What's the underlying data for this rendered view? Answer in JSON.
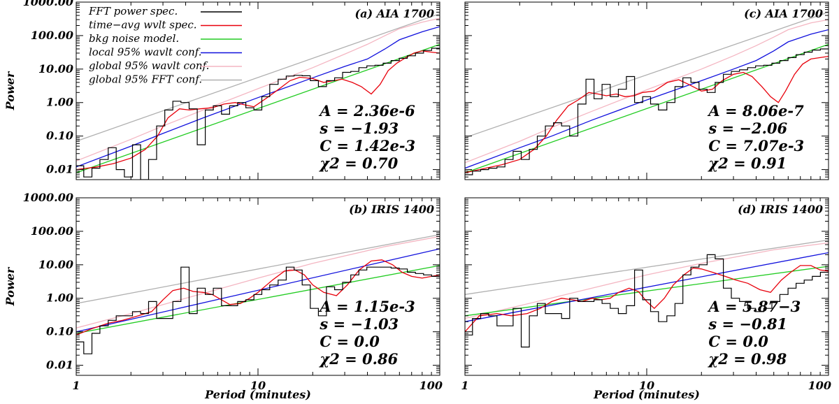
{
  "figure": {
    "xlabel": "Period (minutes)",
    "ylabel": "Power"
  },
  "chart_data": [
    {
      "type": "line",
      "id": "a",
      "title": "(a) AIA 1700",
      "xscale": "log",
      "yscale": "log",
      "xlim": [
        1,
        100
      ],
      "ylim": [
        0.005,
        1000
      ],
      "xticks": [
        1,
        10,
        100
      ],
      "xticklabels": [
        "1",
        "10",
        "100"
      ],
      "yticks": [
        0.01,
        0.1,
        1,
        10,
        100,
        1000
      ],
      "yticklabels": [
        "0.01",
        "0.10",
        "1.00",
        "10.00",
        "100.00",
        "1000.00"
      ],
      "show_legend": true,
      "stats": [
        "A = 2.36e-6",
        "s = −1.93",
        "C = 1.42e-3",
        "χ2 = 0.70"
      ],
      "fft": {
        "edges": [
          1.0,
          1.1,
          1.22,
          1.35,
          1.5,
          1.66,
          1.84,
          2.04,
          2.26,
          2.5,
          2.77,
          3.07,
          3.4,
          3.77,
          4.18,
          4.63,
          5.13,
          5.68,
          6.3,
          6.98,
          7.73,
          8.57,
          9.5,
          10.5,
          11.6,
          12.9,
          14.3,
          15.8,
          17.5,
          19.4,
          21.5,
          23.8,
          26.4,
          29.2,
          32.4,
          35.9,
          39.7,
          44.0,
          48.8,
          54.0,
          59.9,
          66.3,
          73.5,
          81.4,
          90.2,
          100.0
        ],
        "values": [
          0.013,
          0.006,
          0.011,
          0.02,
          0.045,
          0.01,
          0.006,
          0.055,
          0.005,
          0.02,
          0.2,
          0.6,
          1.1,
          1.0,
          0.65,
          0.055,
          0.6,
          0.8,
          0.45,
          0.8,
          1.0,
          0.7,
          0.6,
          1.5,
          3.5,
          5.0,
          6.2,
          6.5,
          6.3,
          4.5,
          3.0,
          4.5,
          5.5,
          8.0,
          8.5,
          11.0,
          12.5,
          13.0,
          15.0,
          18.0,
          21.0,
          25.0,
          30.0,
          36.0,
          42.0
        ]
      },
      "series": [
        {
          "name": "time−avg wvlt spec.",
          "color": "#e8000b",
          "x": [
            1,
            1.3,
            1.6,
            2,
            2.4,
            2.8,
            3.2,
            3.7,
            4.2,
            4.8,
            5.6,
            6.5,
            7.5,
            8.5,
            9.5,
            11,
            13,
            15,
            17,
            20,
            23,
            26,
            29,
            33,
            37,
            42,
            47,
            52,
            58,
            65,
            72,
            80,
            90,
            100
          ],
          "y": [
            0.01,
            0.012,
            0.015,
            0.022,
            0.04,
            0.1,
            0.35,
            0.65,
            0.6,
            0.65,
            0.7,
            0.9,
            1.0,
            0.85,
            0.75,
            1.3,
            2.5,
            4.5,
            5.7,
            5.2,
            4.0,
            4.5,
            5.0,
            4.0,
            3.0,
            1.8,
            3.5,
            9.0,
            15,
            22,
            30,
            35,
            32,
            30
          ]
        },
        {
          "name": "bkg noise model.",
          "color": "#22cc22",
          "x": [
            1,
            100
          ],
          "y": [
            0.008,
            55
          ]
        },
        {
          "name": "local 95% wavlt conf.",
          "color": "#1010dd",
          "x": [
            1,
            2,
            3,
            5,
            10,
            20,
            30,
            40,
            50,
            60,
            80,
            100
          ],
          "y": [
            0.012,
            0.05,
            0.12,
            0.35,
            1.4,
            5.5,
            12,
            20,
            40,
            75,
            130,
            185
          ]
        },
        {
          "name": "global 95% wavlt conf.",
          "color": "#f4b6c2",
          "x": [
            1,
            2,
            3,
            5,
            10,
            20,
            30,
            40,
            50,
            60,
            80,
            100
          ],
          "y": [
            0.018,
            0.08,
            0.2,
            0.6,
            2.6,
            11,
            28,
            55,
            100,
            160,
            250,
            330
          ]
        },
        {
          "name": "global 95% FFT conf.",
          "color": "#b0b0b0",
          "x": [
            1,
            100
          ],
          "y": [
            0.07,
            450
          ]
        }
      ]
    },
    {
      "type": "line",
      "id": "b",
      "title": "(b) IRIS 1400",
      "xscale": "log",
      "yscale": "log",
      "xlim": [
        1,
        100
      ],
      "ylim": [
        0.005,
        1000
      ],
      "xticks": [
        1,
        10,
        100
      ],
      "xticklabels": [
        "1",
        "10",
        "100"
      ],
      "yticks": [
        0.01,
        0.1,
        1,
        10,
        100,
        1000
      ],
      "yticklabels": [
        "0.01",
        "0.10",
        "1.00",
        "10.00",
        "100.00",
        "1000.00"
      ],
      "show_legend": false,
      "stats": [
        "A = 1.15e-3",
        "s = −1.03",
        "C = 0.0",
        "χ2 = 0.86"
      ],
      "fft": {
        "edges": [
          1.0,
          1.1,
          1.22,
          1.35,
          1.5,
          1.66,
          1.84,
          2.04,
          2.26,
          2.5,
          2.77,
          3.07,
          3.4,
          3.77,
          4.18,
          4.63,
          5.13,
          5.68,
          6.3,
          6.98,
          7.73,
          8.57,
          9.5,
          10.5,
          11.6,
          12.9,
          14.3,
          15.8,
          17.5,
          19.4,
          21.5,
          23.8,
          26.4,
          29.2,
          32.4,
          35.9,
          39.7,
          44.0,
          48.8,
          54.0,
          59.9,
          66.3,
          73.5,
          81.4,
          90.2,
          100.0
        ],
        "values": [
          0.05,
          0.022,
          0.09,
          0.15,
          0.22,
          0.3,
          0.3,
          0.4,
          0.35,
          0.8,
          0.25,
          0.25,
          0.8,
          8.5,
          0.35,
          2.0,
          1.3,
          2.0,
          0.6,
          0.6,
          0.8,
          0.9,
          1.3,
          1.8,
          2.5,
          3.5,
          8.5,
          7.0,
          2.5,
          0.5,
          0.3,
          2.2,
          1.8,
          3.0,
          5.0,
          7.0,
          8.5,
          8.5,
          8.5,
          8.0,
          7.5,
          6.0,
          5.5,
          5.0,
          4.5
        ]
      },
      "series": [
        {
          "name": "time−avg wvlt spec.",
          "color": "#e8000b",
          "x": [
            1,
            1.2,
            1.5,
            1.8,
            2.2,
            2.6,
            3,
            3.4,
            3.9,
            4.4,
            5,
            5.6,
            6.3,
            7,
            8,
            9,
            10,
            12,
            14,
            16,
            18,
            20,
            23,
            27,
            31,
            36,
            42,
            48,
            55,
            62,
            70,
            80,
            90,
            100
          ],
          "y": [
            0.08,
            0.12,
            0.18,
            0.22,
            0.3,
            0.4,
            0.9,
            1.7,
            2.0,
            1.6,
            1.5,
            1.3,
            0.9,
            0.65,
            0.7,
            1.0,
            1.5,
            3.5,
            6.5,
            7.0,
            5.0,
            2.5,
            1.5,
            1.2,
            2.5,
            7.0,
            13.0,
            14.0,
            10.0,
            6.0,
            4.5,
            4.0,
            4.5,
            5.0
          ]
        },
        {
          "name": "bkg noise model.",
          "color": "#22cc22",
          "x": [
            1,
            100
          ],
          "y": [
            0.09,
            9.5
          ]
        },
        {
          "name": "local 95% wavlt conf.",
          "color": "#1010dd",
          "x": [
            1,
            100
          ],
          "y": [
            0.1,
            30
          ]
        },
        {
          "name": "global 95% wavlt conf.",
          "color": "#f4b6c2",
          "x": [
            1,
            2,
            5,
            10,
            20,
            50,
            100
          ],
          "y": [
            0.13,
            0.35,
            1.4,
            4.0,
            11,
            35,
            70
          ]
        },
        {
          "name": "global 95% FFT conf.",
          "color": "#b0b0b0",
          "x": [
            1,
            100
          ],
          "y": [
            0.7,
            80
          ]
        }
      ]
    },
    {
      "type": "line",
      "id": "c",
      "title": "(c) AIA 1700",
      "xscale": "log",
      "yscale": "log",
      "xlim": [
        1,
        100
      ],
      "ylim": [
        0.005,
        1000
      ],
      "xticks": [
        1,
        10,
        100
      ],
      "xticklabels": [
        "1",
        "10",
        "100"
      ],
      "yticks": [
        0.01,
        0.1,
        1,
        10,
        100,
        1000
      ],
      "yticklabels": [
        "",
        "",
        "",
        "",
        "",
        ""
      ],
      "show_legend": false,
      "stats": [
        "A = 8.06e-7",
        "s = −2.06",
        "C = 7.07e-3",
        "χ2 = 0.91"
      ],
      "fft": {
        "edges": [
          1.0,
          1.1,
          1.22,
          1.35,
          1.5,
          1.66,
          1.84,
          2.04,
          2.26,
          2.5,
          2.77,
          3.07,
          3.4,
          3.77,
          4.18,
          4.63,
          5.13,
          5.68,
          6.3,
          6.98,
          7.73,
          8.57,
          9.5,
          10.5,
          11.6,
          12.9,
          14.3,
          15.8,
          17.5,
          19.4,
          21.5,
          23.8,
          26.4,
          29.2,
          32.4,
          35.9,
          39.7,
          44.0,
          48.8,
          54.0,
          59.9,
          66.3,
          73.5,
          81.4,
          90.2,
          100.0
        ],
        "values": [
          0.007,
          0.009,
          0.01,
          0.011,
          0.012,
          0.02,
          0.035,
          0.02,
          0.04,
          0.1,
          0.2,
          0.25,
          0.2,
          0.1,
          0.9,
          5.0,
          1.3,
          3.5,
          1.5,
          2.5,
          6.0,
          1.0,
          1.5,
          0.9,
          0.6,
          1.0,
          3.0,
          5.5,
          4.0,
          2.5,
          2.0,
          4.0,
          7.0,
          8.5,
          9.5,
          11.0,
          12.5,
          13.0,
          15.0,
          18.0,
          22.0,
          27.0,
          32.0,
          37.0,
          40.0
        ]
      },
      "series": [
        {
          "name": "time−avg wvlt spec.",
          "color": "#e8000b",
          "x": [
            1,
            1.3,
            1.6,
            2,
            2.4,
            2.8,
            3.2,
            3.7,
            4.2,
            4.8,
            5.4,
            6,
            6.8,
            7.6,
            8.5,
            9.5,
            11,
            13,
            15,
            17,
            20,
            23,
            26,
            30,
            34,
            38,
            43,
            48,
            53,
            58,
            65,
            72,
            80,
            90,
            100
          ],
          "y": [
            0.008,
            0.011,
            0.014,
            0.02,
            0.04,
            0.1,
            0.3,
            0.8,
            1.2,
            2.0,
            1.8,
            1.6,
            1.8,
            1.5,
            1.6,
            2.0,
            2.2,
            4.0,
            4.8,
            3.5,
            2.2,
            2.5,
            4.5,
            7.0,
            8.0,
            6.0,
            3.0,
            1.5,
            1.0,
            2.2,
            7.0,
            14.0,
            20.0,
            22.0,
            24.0
          ]
        },
        {
          "name": "bkg noise model.",
          "color": "#22cc22",
          "x": [
            1,
            100
          ],
          "y": [
            0.008,
            55
          ]
        },
        {
          "name": "local 95% wavlt conf.",
          "color": "#1010dd",
          "x": [
            1,
            2,
            3,
            5,
            10,
            20,
            30,
            40,
            50,
            60,
            80,
            100
          ],
          "y": [
            0.011,
            0.045,
            0.1,
            0.3,
            1.2,
            4.5,
            10,
            18,
            35,
            65,
            110,
            150
          ]
        },
        {
          "name": "global 95% wavlt conf.",
          "color": "#f4b6c2",
          "x": [
            1,
            2,
            3,
            5,
            10,
            20,
            30,
            40,
            50,
            60,
            80,
            100
          ],
          "y": [
            0.016,
            0.07,
            0.18,
            0.55,
            2.4,
            10,
            25,
            50,
            90,
            150,
            240,
            300
          ]
        },
        {
          "name": "global 95% FFT conf.",
          "color": "#b0b0b0",
          "x": [
            1,
            100
          ],
          "y": [
            0.09,
            500
          ]
        }
      ]
    },
    {
      "type": "line",
      "id": "d",
      "title": "(d) IRIS 1400",
      "xscale": "log",
      "yscale": "log",
      "xlim": [
        1,
        100
      ],
      "ylim": [
        0.005,
        1000
      ],
      "xticks": [
        1,
        10,
        100
      ],
      "xticklabels": [
        "1",
        "10",
        "100"
      ],
      "yticks": [
        0.01,
        0.1,
        1,
        10,
        100,
        1000
      ],
      "yticklabels": [
        "",
        "",
        "",
        "",
        "",
        ""
      ],
      "show_legend": false,
      "stats": [
        "A = 5.87−3",
        "s = −0.81",
        "C = 0.0",
        "χ2 = 0.98"
      ],
      "fft": {
        "edges": [
          1.0,
          1.1,
          1.22,
          1.35,
          1.5,
          1.66,
          1.84,
          2.04,
          2.26,
          2.5,
          2.77,
          3.07,
          3.4,
          3.77,
          4.18,
          4.63,
          5.13,
          5.68,
          6.3,
          6.98,
          7.73,
          8.57,
          9.5,
          10.5,
          11.6,
          12.9,
          14.3,
          15.8,
          17.5,
          19.4,
          21.5,
          23.8,
          26.4,
          29.2,
          32.4,
          35.9,
          39.7,
          44.0,
          48.8,
          54.0,
          59.9,
          66.3,
          73.5,
          81.4,
          90.2,
          100.0
        ],
        "values": [
          0.08,
          0.25,
          0.35,
          0.3,
          0.15,
          0.15,
          0.5,
          0.035,
          0.3,
          0.7,
          0.35,
          0.35,
          0.25,
          1.0,
          0.8,
          0.8,
          0.9,
          0.7,
          0.5,
          0.35,
          0.6,
          7.0,
          0.9,
          0.4,
          0.2,
          0.3,
          0.7,
          5.0,
          8.5,
          10.0,
          20.0,
          15.0,
          2.0,
          1.0,
          0.8,
          0.5,
          0.4,
          0.5,
          0.8,
          1.3,
          2.0,
          2.8,
          3.5,
          4.5,
          6.0
        ]
      },
      "series": [
        {
          "name": "time−avg wvlt spec.",
          "color": "#e8000b",
          "x": [
            1,
            1.2,
            1.5,
            1.8,
            2.2,
            2.6,
            3,
            3.4,
            3.9,
            4.4,
            5,
            5.6,
            6.3,
            7,
            8,
            9,
            10,
            11,
            12.5,
            14,
            16,
            18,
            20,
            23,
            27,
            31,
            36,
            42,
            48,
            55,
            62,
            70,
            80,
            90,
            100
          ],
          "y": [
            0.1,
            0.3,
            0.35,
            0.3,
            0.35,
            0.5,
            0.8,
            1.0,
            0.9,
            0.8,
            1.0,
            0.9,
            1.0,
            1.5,
            2.0,
            1.6,
            0.8,
            0.5,
            1.0,
            2.5,
            5.0,
            8.0,
            7.5,
            6.0,
            4.5,
            3.5,
            2.8,
            1.8,
            1.5,
            3.5,
            6.0,
            9.5,
            9.5,
            7.0,
            6.5
          ]
        },
        {
          "name": "bkg noise model.",
          "color": "#22cc22",
          "x": [
            1,
            100
          ],
          "y": [
            0.3,
            9.0
          ]
        },
        {
          "name": "local 95% wavlt conf.",
          "color": "#1010dd",
          "x": [
            1,
            100
          ],
          "y": [
            0.2,
            23
          ]
        },
        {
          "name": "global 95% wavlt conf.",
          "color": "#f4b6c2",
          "x": [
            1,
            2,
            5,
            10,
            20,
            50,
            100
          ],
          "y": [
            0.25,
            0.6,
            2.0,
            5.0,
            11,
            28,
            45
          ]
        },
        {
          "name": "global 95% FFT conf.",
          "color": "#b0b0b0",
          "x": [
            1,
            100
          ],
          "y": [
            1.3,
            55
          ]
        }
      ]
    }
  ],
  "legend": {
    "entries": [
      {
        "label": "FFT power spec.",
        "color": "#000000"
      },
      {
        "label": "time−avg wvlt spec.",
        "color": "#e8000b"
      },
      {
        "label": "bkg noise model.",
        "color": "#22cc22"
      },
      {
        "label": "local 95% wavlt conf.",
        "color": "#1010dd"
      },
      {
        "label": "global 95% wavlt conf.",
        "color": "#f4b6c2"
      },
      {
        "label": "global 95% FFT conf.",
        "color": "#b0b0b0"
      }
    ]
  }
}
